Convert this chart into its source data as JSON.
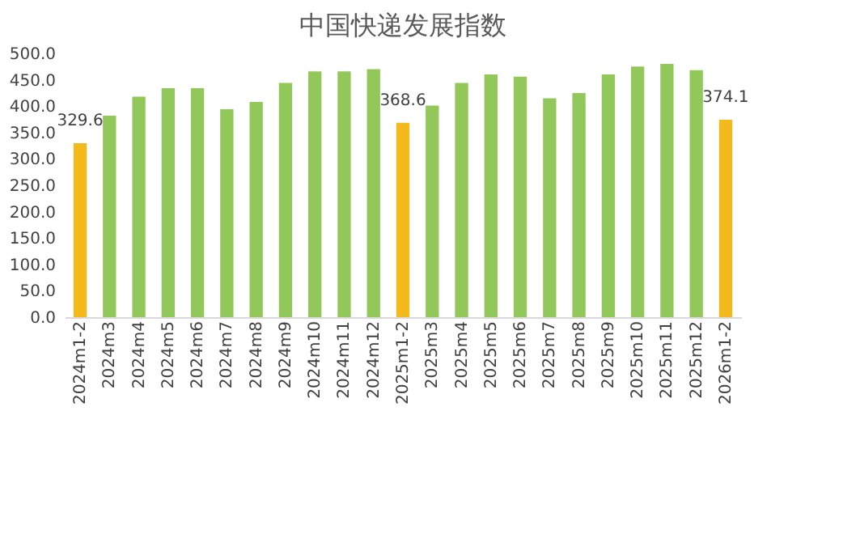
{
  "chart_data": {
    "type": "bar",
    "title": "中国快递发展指数",
    "categories": [
      "2024m1-2",
      "2024m3",
      "2024m4",
      "2024m5",
      "2024m6",
      "2024m7",
      "2024m8",
      "2024m9",
      "2024m10",
      "2024m11",
      "2024m12",
      "2025m1-2",
      "2025m3",
      "2025m4",
      "2025m5",
      "2025m6",
      "2025m7",
      "2025m8",
      "2025m9",
      "2025m10",
      "2025m11",
      "2025m12",
      "2026m1-2"
    ],
    "values": [
      329.6,
      382,
      418,
      434,
      434,
      394,
      408,
      444,
      466,
      466,
      470,
      368.6,
      401,
      444,
      460,
      456,
      415,
      425,
      460,
      475,
      480,
      468,
      374.1
    ],
    "colors": [
      "#f4b91a",
      "#92c85a",
      "#92c85a",
      "#92c85a",
      "#92c85a",
      "#92c85a",
      "#92c85a",
      "#92c85a",
      "#92c85a",
      "#92c85a",
      "#92c85a",
      "#f4b91a",
      "#92c85a",
      "#92c85a",
      "#92c85a",
      "#92c85a",
      "#92c85a",
      "#92c85a",
      "#92c85a",
      "#92c85a",
      "#92c85a",
      "#92c85a",
      "#f4b91a"
    ],
    "value_labels": [
      "329.6",
      null,
      null,
      null,
      null,
      null,
      null,
      null,
      null,
      null,
      null,
      "368.6",
      null,
      null,
      null,
      null,
      null,
      null,
      null,
      null,
      null,
      null,
      "374.1"
    ],
    "ylim": [
      0,
      500
    ],
    "yticks": [
      {
        "value": 0,
        "label": "0.0"
      },
      {
        "value": 50,
        "label": "50.0"
      },
      {
        "value": 100,
        "label": "100.0"
      },
      {
        "value": 150,
        "label": "150.0"
      },
      {
        "value": 200,
        "label": "200.0"
      },
      {
        "value": 250,
        "label": "250.0"
      },
      {
        "value": 300,
        "label": "300.0"
      },
      {
        "value": 350,
        "label": "350.0"
      },
      {
        "value": 400,
        "label": "400.0"
      },
      {
        "value": 450,
        "label": "450.0"
      },
      {
        "value": 500,
        "label": "500.0"
      }
    ],
    "grid": false
  }
}
